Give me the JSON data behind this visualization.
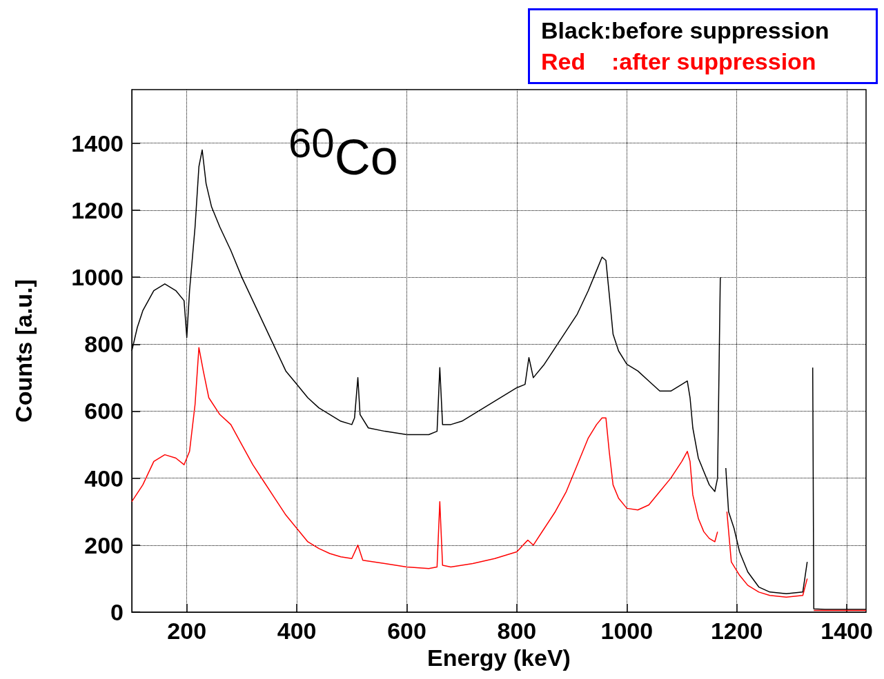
{
  "chart_data": {
    "type": "line",
    "xlabel": "Energy (keV)",
    "ylabel": "Counts [a.u.]",
    "annotations": [
      "$^{60}$Co",
      "Black:before suppression",
      "Red    :after suppression"
    ],
    "xlim": [
      100,
      1435
    ],
    "xticks": [
      200,
      400,
      600,
      800,
      1000,
      1200,
      1400
    ],
    "ylim": [
      0,
      1560
    ],
    "yticks": [
      0,
      200,
      400,
      600,
      800,
      1000,
      1200,
      1400
    ],
    "grid": true,
    "series": [
      {
        "color": "#000000",
        "x": [
          100,
          110,
          120,
          140,
          160,
          180,
          195,
          200,
          205,
          215,
          222,
          228,
          235,
          245,
          260,
          280,
          300,
          320,
          340,
          360,
          380,
          400,
          420,
          440,
          460,
          480,
          500,
          505,
          511,
          515,
          530,
          560,
          600,
          640,
          655,
          660,
          665,
          680,
          700,
          720,
          740,
          760,
          780,
          800,
          815,
          822,
          830,
          850,
          870,
          890,
          910,
          930,
          945,
          955,
          962,
          968,
          975,
          985,
          1000,
          1020,
          1040,
          1060,
          1080,
          1100,
          1110,
          1115,
          1120,
          1130,
          1140,
          1150,
          1160,
          1165,
          1170,
          1173,
          1178,
          1180,
          1185,
          1195,
          1205,
          1220,
          1240,
          1260,
          1290,
          1320,
          1328,
          1332,
          1335,
          1338,
          1340,
          1360,
          1400,
          1435
        ],
        "values": [
          780,
          850,
          900,
          960,
          980,
          960,
          930,
          820,
          960,
          1150,
          1330,
          1380,
          1280,
          1210,
          1150,
          1080,
          1000,
          930,
          860,
          790,
          720,
          680,
          640,
          610,
          590,
          570,
          560,
          580,
          700,
          590,
          550,
          540,
          530,
          530,
          540,
          730,
          560,
          560,
          570,
          590,
          610,
          630,
          650,
          670,
          680,
          760,
          700,
          740,
          790,
          840,
          890,
          960,
          1020,
          1060,
          1050,
          950,
          830,
          780,
          740,
          720,
          690,
          660,
          660,
          680,
          690,
          640,
          550,
          460,
          420,
          380,
          360,
          400,
          1000,
          null,
          null,
          430,
          300,
          250,
          180,
          120,
          75,
          60,
          55,
          60,
          150,
          null,
          null,
          730,
          10,
          8,
          8,
          8
        ]
      },
      {
        "color": "#ff0000",
        "x": [
          100,
          120,
          140,
          160,
          180,
          195,
          205,
          215,
          222,
          230,
          240,
          260,
          280,
          300,
          320,
          340,
          360,
          380,
          400,
          420,
          440,
          460,
          480,
          500,
          511,
          520,
          560,
          600,
          640,
          655,
          660,
          665,
          680,
          700,
          720,
          760,
          800,
          820,
          830,
          850,
          870,
          890,
          910,
          930,
          945,
          955,
          962,
          968,
          975,
          985,
          1000,
          1020,
          1040,
          1060,
          1080,
          1100,
          1110,
          1115,
          1120,
          1130,
          1140,
          1150,
          1160,
          1165,
          1170,
          1178,
          1182,
          1190,
          1205,
          1220,
          1240,
          1260,
          1290,
          1320,
          1328,
          1330,
          1336,
          1340,
          1400,
          1435
        ],
        "values": [
          330,
          380,
          450,
          470,
          460,
          440,
          480,
          620,
          790,
          720,
          640,
          590,
          560,
          500,
          440,
          390,
          340,
          290,
          250,
          210,
          190,
          175,
          165,
          160,
          200,
          155,
          145,
          135,
          130,
          135,
          330,
          140,
          135,
          140,
          145,
          160,
          180,
          215,
          200,
          250,
          300,
          360,
          440,
          520,
          560,
          580,
          580,
          480,
          380,
          340,
          310,
          305,
          320,
          360,
          400,
          450,
          480,
          450,
          350,
          280,
          240,
          220,
          210,
          240,
          null,
          null,
          300,
          150,
          110,
          80,
          60,
          50,
          45,
          50,
          100,
          null,
          null,
          5,
          5,
          5
        ]
      }
    ]
  }
}
